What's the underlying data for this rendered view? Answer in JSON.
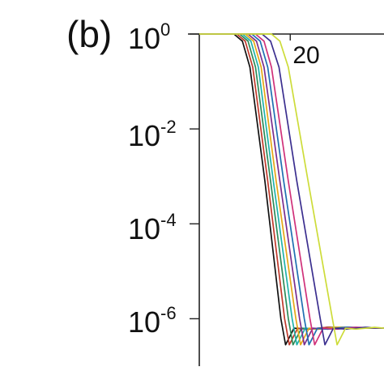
{
  "panel_label": "(b)",
  "chart_data": {
    "type": "line",
    "y_scale": "log",
    "x_axis_position": "top",
    "grid": false,
    "legend": "none",
    "xlim": [
      10.3,
      30
    ],
    "ylim_exponent": [
      0,
      -7.0
    ],
    "x_ticks": [
      {
        "value": 20,
        "label": "20"
      }
    ],
    "y_ticks": [
      {
        "exponent": 0,
        "base": "10",
        "sup": "0"
      },
      {
        "exponent": -2,
        "base": "10",
        "sup": "-2"
      },
      {
        "exponent": -4,
        "base": "10",
        "sup": "-4"
      },
      {
        "exponent": -6,
        "base": "10",
        "sup": "-6"
      }
    ],
    "series": [
      {
        "color": "#111111",
        "points": [
          [
            10.3,
            0
          ],
          [
            14,
            0
          ],
          [
            14.9,
            -0.15
          ],
          [
            15.7,
            -0.7
          ],
          [
            17.3,
            -3.1
          ],
          [
            19.0,
            -6.0
          ],
          [
            19.5,
            -6.55
          ],
          [
            20.4,
            -6.2
          ],
          [
            22,
            -6.22
          ],
          [
            24,
            -6.18
          ],
          [
            30,
            -6.2
          ]
        ]
      },
      {
        "color": "#c0392b",
        "points": [
          [
            10.3,
            0
          ],
          [
            14.3,
            0
          ],
          [
            15.2,
            -0.15
          ],
          [
            16.0,
            -0.7
          ],
          [
            17.6,
            -3.1
          ],
          [
            19.4,
            -6.0
          ],
          [
            19.9,
            -6.55
          ],
          [
            20.8,
            -6.2
          ],
          [
            22,
            -6.22
          ],
          [
            24,
            -6.18
          ],
          [
            30,
            -6.2
          ]
        ]
      },
      {
        "color": "#2e8b57",
        "points": [
          [
            10.3,
            0
          ],
          [
            14.6,
            0
          ],
          [
            15.5,
            -0.15
          ],
          [
            16.3,
            -0.7
          ],
          [
            17.9,
            -3.1
          ],
          [
            19.8,
            -6.0
          ],
          [
            20.3,
            -6.55
          ],
          [
            21.2,
            -6.2
          ],
          [
            23,
            -6.22
          ],
          [
            25,
            -6.18
          ],
          [
            30,
            -6.2
          ]
        ]
      },
      {
        "color": "#20b2aa",
        "points": [
          [
            10.3,
            0
          ],
          [
            14.9,
            0
          ],
          [
            15.8,
            -0.15
          ],
          [
            16.6,
            -0.7
          ],
          [
            18.2,
            -3.1
          ],
          [
            20.2,
            -6.0
          ],
          [
            20.7,
            -6.55
          ],
          [
            21.6,
            -6.2
          ],
          [
            23,
            -6.22
          ],
          [
            25,
            -6.18
          ],
          [
            30,
            -6.2
          ]
        ]
      },
      {
        "color": "#e6a817",
        "points": [
          [
            10.3,
            0
          ],
          [
            15.2,
            0
          ],
          [
            16.1,
            -0.15
          ],
          [
            16.9,
            -0.7
          ],
          [
            18.5,
            -3.1
          ],
          [
            20.6,
            -6.0
          ],
          [
            21.1,
            -6.55
          ],
          [
            22.0,
            -6.2
          ],
          [
            23,
            -6.22
          ],
          [
            25,
            -6.18
          ],
          [
            30,
            -6.2
          ]
        ]
      },
      {
        "color": "#7a2e8e",
        "points": [
          [
            10.3,
            0
          ],
          [
            15.5,
            0
          ],
          [
            16.4,
            -0.15
          ],
          [
            17.2,
            -0.7
          ],
          [
            18.9,
            -3.1
          ],
          [
            21.0,
            -6.0
          ],
          [
            21.5,
            -6.55
          ],
          [
            22.4,
            -6.2
          ],
          [
            24,
            -6.22
          ],
          [
            26,
            -6.18
          ],
          [
            30,
            -6.2
          ]
        ]
      },
      {
        "color": "#1f6fb2",
        "points": [
          [
            10.3,
            0
          ],
          [
            15.9,
            0
          ],
          [
            16.8,
            -0.15
          ],
          [
            17.6,
            -0.7
          ],
          [
            19.3,
            -3.1
          ],
          [
            21.5,
            -6.0
          ],
          [
            22.0,
            -6.55
          ],
          [
            22.9,
            -6.2
          ],
          [
            24,
            -6.22
          ],
          [
            26,
            -6.18
          ],
          [
            30,
            -6.2
          ]
        ]
      },
      {
        "color": "#d0317a",
        "points": [
          [
            10.3,
            0
          ],
          [
            16.3,
            0
          ],
          [
            17.2,
            -0.15
          ],
          [
            18.0,
            -0.7
          ],
          [
            19.8,
            -3.1
          ],
          [
            22.1,
            -6.0
          ],
          [
            22.6,
            -6.55
          ],
          [
            23.5,
            -6.2
          ],
          [
            25,
            -6.22
          ],
          [
            27,
            -6.18
          ],
          [
            30,
            -6.2
          ]
        ]
      },
      {
        "color": "#3b2f8f",
        "points": [
          [
            10.3,
            0
          ],
          [
            17.0,
            0
          ],
          [
            17.9,
            -0.15
          ],
          [
            18.8,
            -0.7
          ],
          [
            20.7,
            -3.1
          ],
          [
            23.2,
            -6.0
          ],
          [
            23.7,
            -6.55
          ],
          [
            24.6,
            -6.2
          ],
          [
            26,
            -6.22
          ],
          [
            28,
            -6.18
          ],
          [
            30,
            -6.2
          ]
        ]
      },
      {
        "color": "#cddc39",
        "points": [
          [
            10.3,
            0
          ],
          [
            18.0,
            0
          ],
          [
            18.9,
            -0.15
          ],
          [
            19.8,
            -0.7
          ],
          [
            21.9,
            -3.1
          ],
          [
            24.5,
            -6.0
          ],
          [
            25.0,
            -6.55
          ],
          [
            25.9,
            -6.2
          ],
          [
            27,
            -6.22
          ],
          [
            29,
            -6.18
          ],
          [
            30,
            -6.2
          ]
        ]
      }
    ]
  }
}
